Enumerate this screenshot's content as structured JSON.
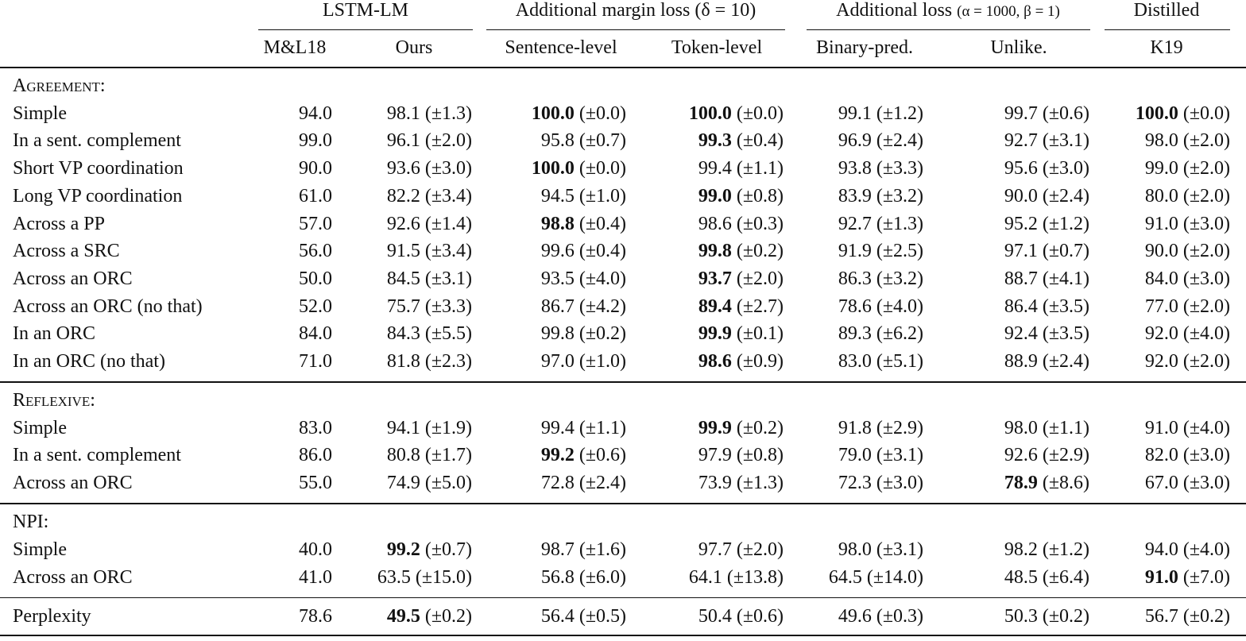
{
  "header": {
    "groups": [
      {
        "label": "LSTM-LM",
        "columns": [
          "M&L18",
          "Ours"
        ]
      },
      {
        "label": "Additional margin loss (δ = 10)",
        "columns": [
          "Sentence-level",
          "Token-level"
        ]
      },
      {
        "label": "Additional loss",
        "params": "(α = 1000, β = 1)",
        "columns": [
          "Binary-pred.",
          "Unlike."
        ]
      },
      {
        "label": "Distilled",
        "columns": [
          "K19"
        ]
      }
    ]
  },
  "sections": [
    {
      "title": "Agreement:",
      "rows": [
        {
          "label": "Simple",
          "cells": [
            {
              "value": "94.0"
            },
            {
              "value": "98.1",
              "error": "(±1.3)"
            },
            {
              "value": "100.0",
              "error": "(±0.0)",
              "bold": true
            },
            {
              "value": "100.0",
              "error": "(±0.0)",
              "bold": true
            },
            {
              "value": "99.1",
              "error": "(±1.2)"
            },
            {
              "value": "99.7",
              "error": "(±0.6)"
            },
            {
              "value": "100.0",
              "error": "(±0.0)",
              "bold": true
            }
          ]
        },
        {
          "label": "In a sent. complement",
          "cells": [
            {
              "value": "99.0"
            },
            {
              "value": "96.1",
              "error": "(±2.0)"
            },
            {
              "value": "95.8",
              "error": "(±0.7)"
            },
            {
              "value": "99.3",
              "error": "(±0.4)",
              "bold": true
            },
            {
              "value": "96.9",
              "error": "(±2.4)"
            },
            {
              "value": "92.7",
              "error": "(±3.1)"
            },
            {
              "value": "98.0",
              "error": "(±2.0)"
            }
          ]
        },
        {
          "label": "Short VP coordination",
          "cells": [
            {
              "value": "90.0"
            },
            {
              "value": "93.6",
              "error": "(±3.0)"
            },
            {
              "value": "100.0",
              "error": "(±0.0)",
              "bold": true
            },
            {
              "value": "99.4",
              "error": "(±1.1)"
            },
            {
              "value": "93.8",
              "error": "(±3.3)"
            },
            {
              "value": "95.6",
              "error": "(±3.0)"
            },
            {
              "value": "99.0",
              "error": "(±2.0)"
            }
          ]
        },
        {
          "label": "Long VP coordination",
          "cells": [
            {
              "value": "61.0"
            },
            {
              "value": "82.2",
              "error": "(±3.4)"
            },
            {
              "value": "94.5",
              "error": "(±1.0)"
            },
            {
              "value": "99.0",
              "error": "(±0.8)",
              "bold": true
            },
            {
              "value": "83.9",
              "error": "(±3.2)"
            },
            {
              "value": "90.0",
              "error": "(±2.4)"
            },
            {
              "value": "80.0",
              "error": "(±2.0)"
            }
          ]
        },
        {
          "label": "Across a PP",
          "cells": [
            {
              "value": "57.0"
            },
            {
              "value": "92.6",
              "error": "(±1.4)"
            },
            {
              "value": "98.8",
              "error": "(±0.4)",
              "bold": true
            },
            {
              "value": "98.6",
              "error": "(±0.3)"
            },
            {
              "value": "92.7",
              "error": "(±1.3)"
            },
            {
              "value": "95.2",
              "error": "(±1.2)"
            },
            {
              "value": "91.0",
              "error": "(±3.0)"
            }
          ]
        },
        {
          "label": "Across a SRC",
          "cells": [
            {
              "value": "56.0"
            },
            {
              "value": "91.5",
              "error": "(±3.4)"
            },
            {
              "value": "99.6",
              "error": "(±0.4)"
            },
            {
              "value": "99.8",
              "error": "(±0.2)",
              "bold": true
            },
            {
              "value": "91.9",
              "error": "(±2.5)"
            },
            {
              "value": "97.1",
              "error": "(±0.7)"
            },
            {
              "value": "90.0",
              "error": "(±2.0)"
            }
          ]
        },
        {
          "label": "Across an ORC",
          "cells": [
            {
              "value": "50.0"
            },
            {
              "value": "84.5",
              "error": "(±3.1)"
            },
            {
              "value": "93.5",
              "error": "(±4.0)"
            },
            {
              "value": "93.7",
              "error": "(±2.0)",
              "bold": true
            },
            {
              "value": "86.3",
              "error": "(±3.2)"
            },
            {
              "value": "88.7",
              "error": "(±4.1)"
            },
            {
              "value": "84.0",
              "error": "(±3.0)"
            }
          ]
        },
        {
          "label": "Across an ORC (no that)",
          "cells": [
            {
              "value": "52.0"
            },
            {
              "value": "75.7",
              "error": "(±3.3)"
            },
            {
              "value": "86.7",
              "error": "(±4.2)"
            },
            {
              "value": "89.4",
              "error": "(±2.7)",
              "bold": true
            },
            {
              "value": "78.6",
              "error": "(±4.0)"
            },
            {
              "value": "86.4",
              "error": "(±3.5)"
            },
            {
              "value": "77.0",
              "error": "(±2.0)"
            }
          ]
        },
        {
          "label": "In an ORC",
          "cells": [
            {
              "value": "84.0"
            },
            {
              "value": "84.3",
              "error": "(±5.5)"
            },
            {
              "value": "99.8",
              "error": "(±0.2)"
            },
            {
              "value": "99.9",
              "error": "(±0.1)",
              "bold": true
            },
            {
              "value": "89.3",
              "error": "(±6.2)"
            },
            {
              "value": "92.4",
              "error": "(±3.5)"
            },
            {
              "value": "92.0",
              "error": "(±4.0)"
            }
          ]
        },
        {
          "label": "In an ORC (no that)",
          "cells": [
            {
              "value": "71.0"
            },
            {
              "value": "81.8",
              "error": "(±2.3)"
            },
            {
              "value": "97.0",
              "error": "(±1.0)"
            },
            {
              "value": "98.6",
              "error": "(±0.9)",
              "bold": true
            },
            {
              "value": "83.0",
              "error": "(±5.1)"
            },
            {
              "value": "88.9",
              "error": "(±2.4)"
            },
            {
              "value": "92.0",
              "error": "(±2.0)"
            }
          ]
        }
      ]
    },
    {
      "title": "Reflexive:",
      "rows": [
        {
          "label": "Simple",
          "cells": [
            {
              "value": "83.0"
            },
            {
              "value": "94.1",
              "error": "(±1.9)"
            },
            {
              "value": "99.4",
              "error": "(±1.1)"
            },
            {
              "value": "99.9",
              "error": "(±0.2)",
              "bold": true
            },
            {
              "value": "91.8",
              "error": "(±2.9)"
            },
            {
              "value": "98.0",
              "error": "(±1.1)"
            },
            {
              "value": "91.0",
              "error": "(±4.0)"
            }
          ]
        },
        {
          "label": "In a sent. complement",
          "cells": [
            {
              "value": "86.0"
            },
            {
              "value": "80.8",
              "error": "(±1.7)"
            },
            {
              "value": "99.2",
              "error": "(±0.6)",
              "bold": true
            },
            {
              "value": "97.9",
              "error": "(±0.8)"
            },
            {
              "value": "79.0",
              "error": "(±3.1)"
            },
            {
              "value": "92.6",
              "error": "(±2.9)"
            },
            {
              "value": "82.0",
              "error": "(±3.0)"
            }
          ]
        },
        {
          "label": "Across an ORC",
          "cells": [
            {
              "value": "55.0"
            },
            {
              "value": "74.9",
              "error": "(±5.0)"
            },
            {
              "value": "72.8",
              "error": "(±2.4)"
            },
            {
              "value": "73.9",
              "error": "(±1.3)"
            },
            {
              "value": "72.3",
              "error": "(±3.0)"
            },
            {
              "value": "78.9",
              "error": "(±8.6)",
              "bold": true
            },
            {
              "value": "67.0",
              "error": "(±3.0)"
            }
          ]
        }
      ]
    },
    {
      "title": "NPI:",
      "rows": [
        {
          "label": "Simple",
          "cells": [
            {
              "value": "40.0"
            },
            {
              "value": "99.2",
              "error": "(±0.7)",
              "bold": true
            },
            {
              "value": "98.7",
              "error": "(±1.6)"
            },
            {
              "value": "97.7",
              "error": "(±2.0)"
            },
            {
              "value": "98.0",
              "error": "(±3.1)"
            },
            {
              "value": "98.2",
              "error": "(±1.2)"
            },
            {
              "value": "94.0",
              "error": "(±4.0)"
            }
          ]
        },
        {
          "label": "Across an ORC",
          "cells": [
            {
              "value": "41.0"
            },
            {
              "value": "63.5",
              "error": "(±15.0)"
            },
            {
              "value": "56.8",
              "error": "(±6.0)"
            },
            {
              "value": "64.1",
              "error": "(±13.8)"
            },
            {
              "value": "64.5",
              "error": "(±14.0)"
            },
            {
              "value": "48.5",
              "error": "(±6.4)"
            },
            {
              "value": "91.0",
              "error": "(±7.0)",
              "bold": true
            }
          ]
        }
      ]
    }
  ],
  "perplexity": {
    "label": "Perplexity",
    "cells": [
      {
        "value": "78.6"
      },
      {
        "value": "49.5",
        "error": "(±0.2)",
        "bold": true
      },
      {
        "value": "56.4",
        "error": "(±0.5)"
      },
      {
        "value": "50.4",
        "error": "(±0.6)"
      },
      {
        "value": "49.6",
        "error": "(±0.3)"
      },
      {
        "value": "50.3",
        "error": "(±0.2)"
      },
      {
        "value": "56.7",
        "error": "(±0.2)"
      }
    ]
  }
}
